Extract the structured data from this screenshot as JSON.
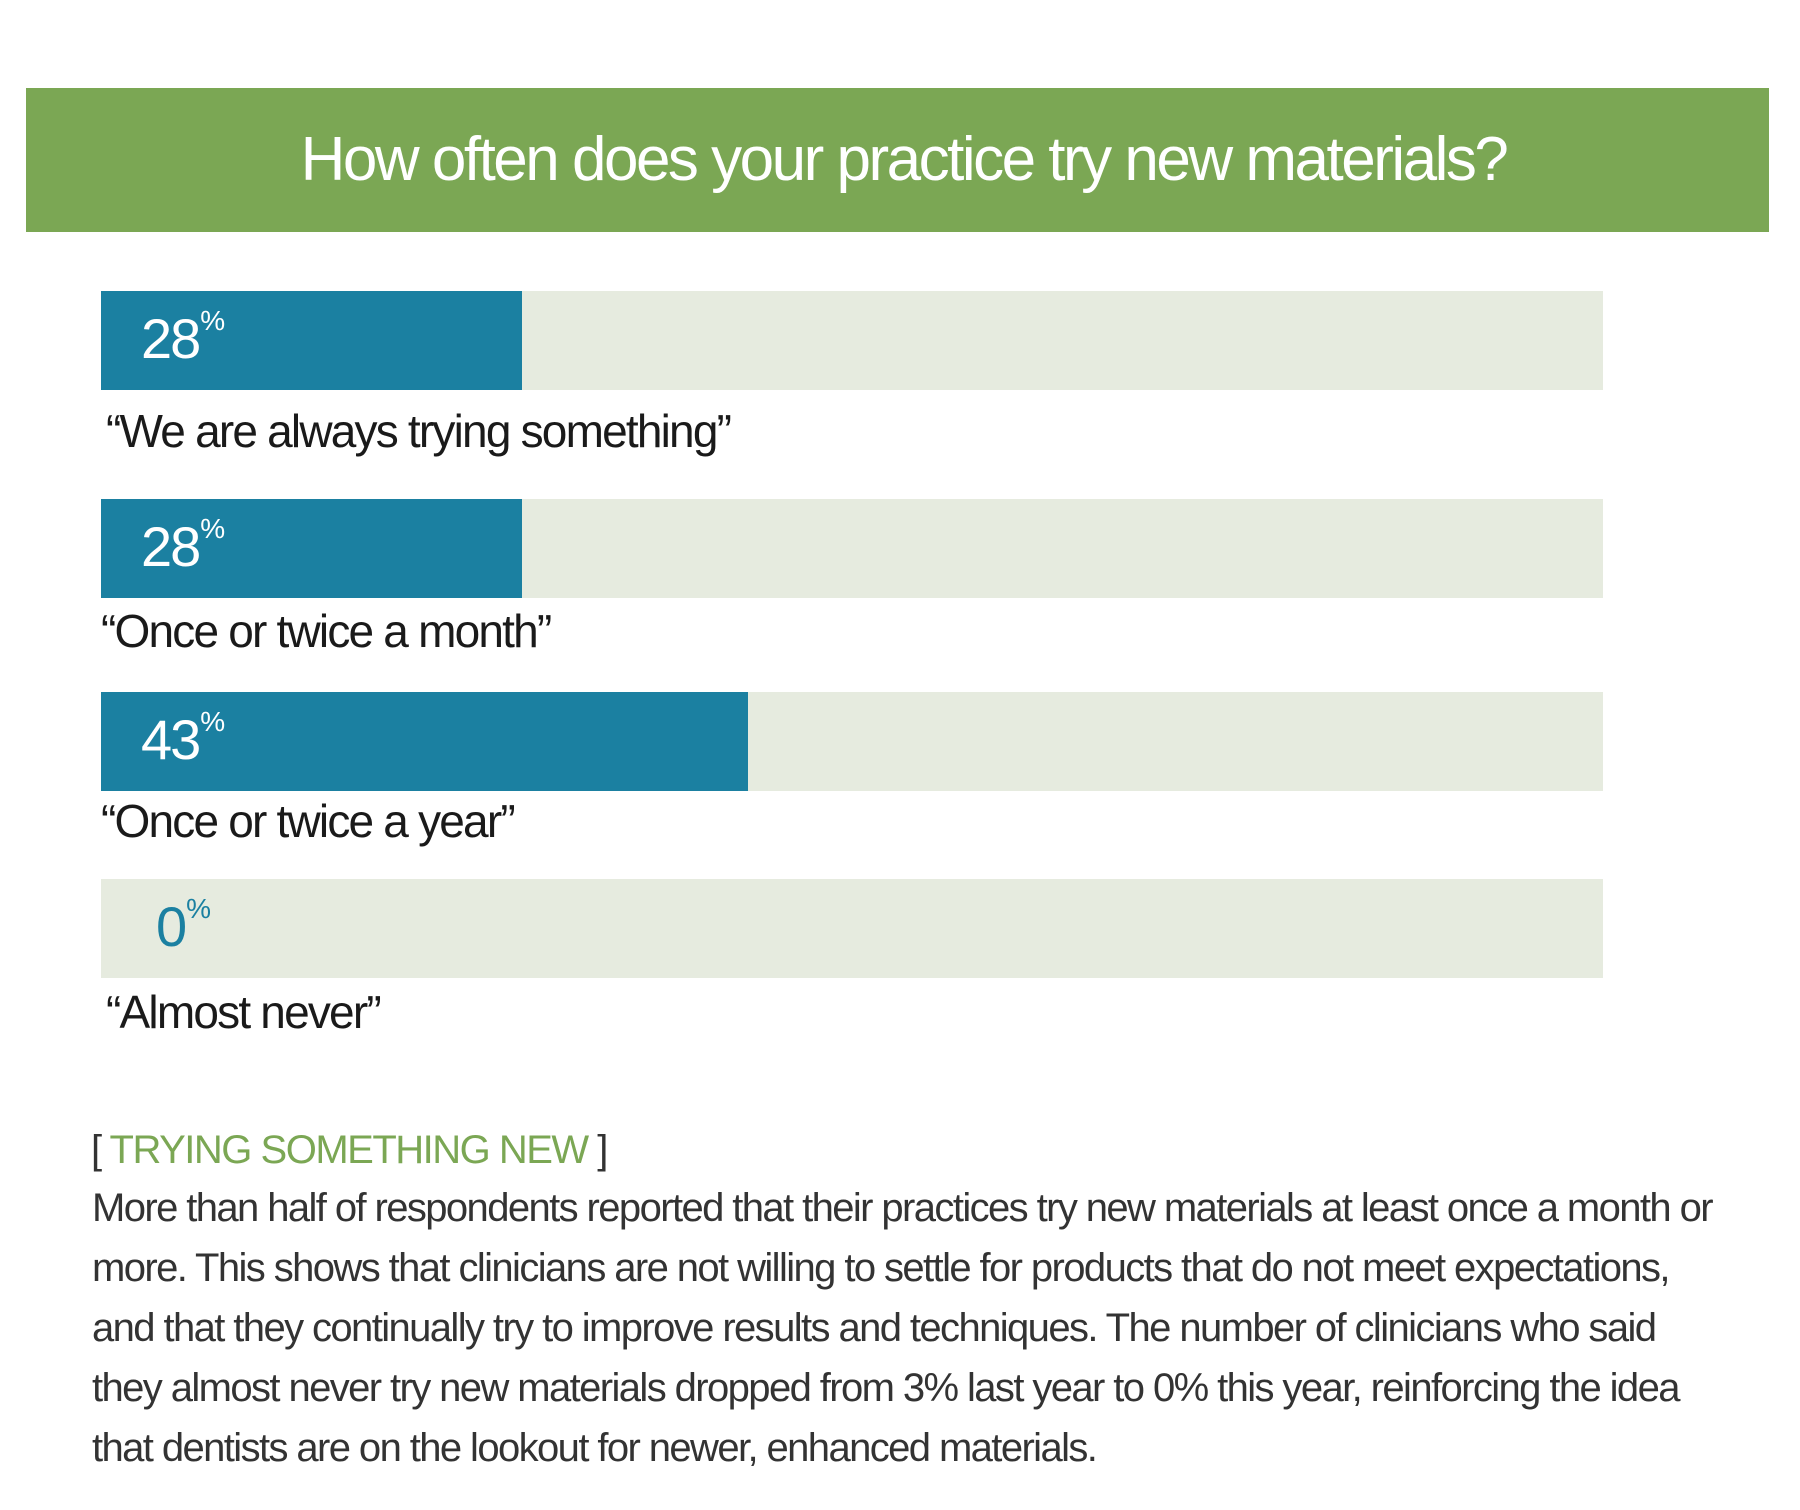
{
  "title": "How often does your practice try new materials?",
  "colors": {
    "banner": "#7ba754",
    "bar": "#1b80a1",
    "track": "#e6ebdf",
    "heading_accent": "#7ba754",
    "body_text": "#333333"
  },
  "chart_data": {
    "type": "bar",
    "orientation": "horizontal",
    "title": "How often does your practice try new materials?",
    "categories": [
      "“We are always trying something”",
      "“Once or twice a month”",
      "“Once or twice a year”",
      "“Almost never”"
    ],
    "values": [
      28,
      28,
      43,
      0
    ],
    "value_labels": [
      "28",
      "28",
      "43",
      "0"
    ],
    "unit": "%",
    "xlim": [
      0,
      100
    ],
    "grid": false,
    "legend": "none"
  },
  "article": {
    "heading_open": "[ ",
    "heading": "TRYING SOMETHING NEW",
    "heading_close": " ]",
    "body": "More than half of respondents reported that their practices try new materials at least once a month or more. This shows that clinicians are not willing to settle for products that do not meet expectations, and that they continually try to improve results and techniques. The number of clinicians who said they almost never try new materials dropped from 3% last year to 0% this year, reinforcing the idea that dentists are on the lookout for newer, enhanced materials."
  }
}
